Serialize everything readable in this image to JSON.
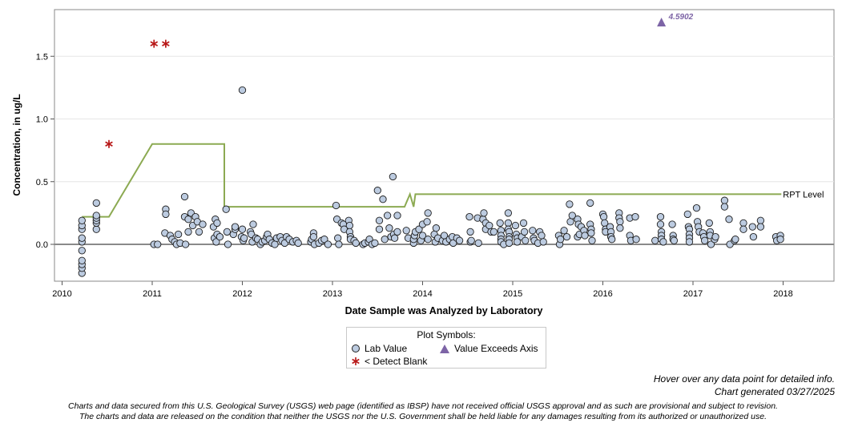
{
  "chart_data": {
    "type": "scatter",
    "title": "",
    "xlabel": "Date Sample was Analyzed by Laboratory",
    "ylabel": "Concentration, in ug/L",
    "xlim": [
      2010.0,
      2018.4
    ],
    "ylim": [
      -0.28,
      1.85
    ],
    "x_ticks": [
      "2010",
      "2011",
      "2012",
      "2013",
      "2014",
      "2015",
      "2016",
      "2017",
      "2018"
    ],
    "y_ticks": [
      "0.0",
      "0.5",
      "1.0",
      "1.5"
    ],
    "zero_line": 0,
    "legend_title": "Plot Symbols:",
    "legend": [
      {
        "key": "lab",
        "label": "Lab Value"
      },
      {
        "key": "exceed",
        "label": "Value Exceeds Axis"
      },
      {
        "key": "blank",
        "label": "< Detect Blank"
      }
    ],
    "series": [
      {
        "key": "lab",
        "name": "Lab Value",
        "color": "#bccbe0",
        "points": [
          [
            2010.22,
            -0.23
          ],
          [
            2010.22,
            -0.19
          ],
          [
            2010.22,
            -0.16
          ],
          [
            2010.22,
            -0.13
          ],
          [
            2010.22,
            -0.05
          ],
          [
            2010.22,
            0.02
          ],
          [
            2010.22,
            0.05
          ],
          [
            2010.22,
            0.12
          ],
          [
            2010.22,
            0.15
          ],
          [
            2010.22,
            0.19
          ],
          [
            2010.38,
            0.12
          ],
          [
            2010.38,
            0.17
          ],
          [
            2010.38,
            0.19
          ],
          [
            2010.38,
            0.21
          ],
          [
            2010.38,
            0.23
          ],
          [
            2010.38,
            0.33
          ],
          [
            2011.02,
            0.0
          ],
          [
            2011.06,
            0.0
          ],
          [
            2011.14,
            0.09
          ],
          [
            2011.15,
            0.28
          ],
          [
            2011.15,
            0.24
          ],
          [
            2011.2,
            0.07
          ],
          [
            2011.22,
            0.04
          ],
          [
            2011.25,
            0.02
          ],
          [
            2011.27,
            0.0
          ],
          [
            2011.29,
            0.08
          ],
          [
            2011.31,
            0.01
          ],
          [
            2011.36,
            0.22
          ],
          [
            2011.36,
            0.38
          ],
          [
            2011.37,
            0.0
          ],
          [
            2011.4,
            0.2
          ],
          [
            2011.4,
            0.1
          ],
          [
            2011.43,
            0.25
          ],
          [
            2011.45,
            0.15
          ],
          [
            2011.48,
            0.22
          ],
          [
            2011.5,
            0.18
          ],
          [
            2011.52,
            0.1
          ],
          [
            2011.56,
            0.16
          ],
          [
            2011.68,
            0.14
          ],
          [
            2011.69,
            0.05
          ],
          [
            2011.7,
            0.2
          ],
          [
            2011.71,
            0.02
          ],
          [
            2011.72,
            0.17
          ],
          [
            2011.72,
            0.08
          ],
          [
            2011.75,
            0.06
          ],
          [
            2011.82,
            0.28
          ],
          [
            2011.83,
            0.1
          ],
          [
            2011.84,
            0.0
          ],
          [
            2011.9,
            0.08
          ],
          [
            2011.92,
            0.12
          ],
          [
            2011.92,
            0.14
          ],
          [
            2011.99,
            0.06
          ],
          [
            2012.0,
            1.23
          ],
          [
            2012.0,
            0.12
          ],
          [
            2012.01,
            0.03
          ],
          [
            2012.02,
            0.05
          ],
          [
            2012.09,
            0.1
          ],
          [
            2012.1,
            0.08
          ],
          [
            2012.11,
            0.02
          ],
          [
            2012.12,
            0.16
          ],
          [
            2012.15,
            0.05
          ],
          [
            2012.17,
            0.04
          ],
          [
            2012.2,
            0.0
          ],
          [
            2012.22,
            0.02
          ],
          [
            2012.25,
            0.03
          ],
          [
            2012.27,
            0.06
          ],
          [
            2012.28,
            0.08
          ],
          [
            2012.3,
            0.04
          ],
          [
            2012.33,
            0.01
          ],
          [
            2012.36,
            0.0
          ],
          [
            2012.38,
            0.05
          ],
          [
            2012.42,
            0.06
          ],
          [
            2012.44,
            0.03
          ],
          [
            2012.47,
            0.01
          ],
          [
            2012.49,
            0.06
          ],
          [
            2012.52,
            0.04
          ],
          [
            2012.56,
            0.02
          ],
          [
            2012.6,
            0.03
          ],
          [
            2012.62,
            0.01
          ],
          [
            2012.76,
            0.02
          ],
          [
            2012.77,
            0.04
          ],
          [
            2012.79,
            0.09
          ],
          [
            2012.79,
            0.06
          ],
          [
            2012.8,
            0.0
          ],
          [
            2012.85,
            0.01
          ],
          [
            2012.88,
            0.03
          ],
          [
            2012.91,
            0.04
          ],
          [
            2012.95,
            0.0
          ],
          [
            2013.04,
            0.31
          ],
          [
            2013.05,
            0.2
          ],
          [
            2013.06,
            0.05
          ],
          [
            2013.07,
            0.0
          ],
          [
            2013.1,
            0.17
          ],
          [
            2013.12,
            0.16
          ],
          [
            2013.13,
            0.12
          ],
          [
            2013.18,
            0.19
          ],
          [
            2013.19,
            0.15
          ],
          [
            2013.19,
            0.1
          ],
          [
            2013.2,
            0.06
          ],
          [
            2013.2,
            0.04
          ],
          [
            2013.24,
            0.03
          ],
          [
            2013.26,
            0.01
          ],
          [
            2013.34,
            0.0
          ],
          [
            2013.36,
            0.01
          ],
          [
            2013.4,
            0.02
          ],
          [
            2013.41,
            0.04
          ],
          [
            2013.44,
            0.0
          ],
          [
            2013.47,
            0.01
          ],
          [
            2013.5,
            0.43
          ],
          [
            2013.52,
            0.19
          ],
          [
            2013.52,
            0.12
          ],
          [
            2013.56,
            0.36
          ],
          [
            2013.58,
            0.04
          ],
          [
            2013.61,
            0.23
          ],
          [
            2013.63,
            0.13
          ],
          [
            2013.65,
            0.06
          ],
          [
            2013.67,
            0.54
          ],
          [
            2013.68,
            0.08
          ],
          [
            2013.69,
            0.05
          ],
          [
            2013.72,
            0.23
          ],
          [
            2013.72,
            0.1
          ],
          [
            2013.82,
            0.11
          ],
          [
            2013.84,
            0.05
          ],
          [
            2013.9,
            0.01
          ],
          [
            2013.9,
            0.04
          ],
          [
            2013.91,
            0.07
          ],
          [
            2013.92,
            0.1
          ],
          [
            2013.96,
            0.12
          ],
          [
            2013.98,
            0.03
          ],
          [
            2014.0,
            0.07
          ],
          [
            2014.0,
            0.16
          ],
          [
            2014.05,
            0.18
          ],
          [
            2014.06,
            0.25
          ],
          [
            2014.06,
            0.04
          ],
          [
            2014.13,
            0.08
          ],
          [
            2014.14,
            0.02
          ],
          [
            2014.15,
            0.13
          ],
          [
            2014.17,
            0.05
          ],
          [
            2014.22,
            0.03
          ],
          [
            2014.24,
            0.07
          ],
          [
            2014.26,
            0.02
          ],
          [
            2014.3,
            0.04
          ],
          [
            2014.33,
            0.06
          ],
          [
            2014.34,
            0.01
          ],
          [
            2014.38,
            0.05
          ],
          [
            2014.41,
            0.03
          ],
          [
            2014.52,
            0.22
          ],
          [
            2014.53,
            0.1
          ],
          [
            2014.53,
            0.02
          ],
          [
            2014.54,
            0.03
          ],
          [
            2014.61,
            0.21
          ],
          [
            2014.62,
            0.01
          ],
          [
            2014.67,
            0.2
          ],
          [
            2014.68,
            0.25
          ],
          [
            2014.7,
            0.17
          ],
          [
            2014.7,
            0.12
          ],
          [
            2014.74,
            0.15
          ],
          [
            2014.76,
            0.1
          ],
          [
            2014.79,
            0.1
          ],
          [
            2014.86,
            0.17
          ],
          [
            2014.87,
            0.11
          ],
          [
            2014.87,
            0.07
          ],
          [
            2014.87,
            0.04
          ],
          [
            2014.87,
            0.02
          ],
          [
            2014.9,
            0.0
          ],
          [
            2014.95,
            0.25
          ],
          [
            2014.95,
            0.17
          ],
          [
            2014.95,
            0.12
          ],
          [
            2014.96,
            0.1
          ],
          [
            2014.96,
            0.06
          ],
          [
            2014.96,
            0.04
          ],
          [
            2014.96,
            0.01
          ],
          [
            2015.03,
            0.15
          ],
          [
            2015.04,
            0.08
          ],
          [
            2015.05,
            0.05
          ],
          [
            2015.05,
            0.02
          ],
          [
            2015.1,
            0.06
          ],
          [
            2015.12,
            0.17
          ],
          [
            2015.13,
            0.1
          ],
          [
            2015.14,
            0.03
          ],
          [
            2015.22,
            0.11
          ],
          [
            2015.23,
            0.05
          ],
          [
            2015.24,
            0.03
          ],
          [
            2015.28,
            0.01
          ],
          [
            2015.3,
            0.1
          ],
          [
            2015.32,
            0.07
          ],
          [
            2015.34,
            0.02
          ],
          [
            2015.51,
            0.07
          ],
          [
            2015.52,
            0.0
          ],
          [
            2015.53,
            0.04
          ],
          [
            2015.57,
            0.11
          ],
          [
            2015.6,
            0.06
          ],
          [
            2015.63,
            0.32
          ],
          [
            2015.64,
            0.18
          ],
          [
            2015.66,
            0.23
          ],
          [
            2015.72,
            0.06
          ],
          [
            2015.72,
            0.2
          ],
          [
            2015.73,
            0.16
          ],
          [
            2015.74,
            0.08
          ],
          [
            2015.76,
            0.14
          ],
          [
            2015.79,
            0.11
          ],
          [
            2015.8,
            0.07
          ],
          [
            2015.86,
            0.16
          ],
          [
            2015.86,
            0.33
          ],
          [
            2015.87,
            0.12
          ],
          [
            2015.87,
            0.09
          ],
          [
            2015.88,
            0.03
          ],
          [
            2016.0,
            0.24
          ],
          [
            2016.01,
            0.22
          ],
          [
            2016.02,
            0.17
          ],
          [
            2016.03,
            0.12
          ],
          [
            2016.03,
            0.1
          ],
          [
            2016.08,
            0.14
          ],
          [
            2016.09,
            0.1
          ],
          [
            2016.09,
            0.06
          ],
          [
            2016.1,
            0.04
          ],
          [
            2016.18,
            0.25
          ],
          [
            2016.18,
            0.21
          ],
          [
            2016.19,
            0.18
          ],
          [
            2016.19,
            0.13
          ],
          [
            2016.3,
            0.21
          ],
          [
            2016.3,
            0.07
          ],
          [
            2016.31,
            0.03
          ],
          [
            2016.36,
            0.22
          ],
          [
            2016.37,
            0.04
          ],
          [
            2016.58,
            0.03
          ],
          [
            2016.64,
            0.22
          ],
          [
            2016.64,
            0.16
          ],
          [
            2016.65,
            0.1
          ],
          [
            2016.65,
            0.07
          ],
          [
            2016.65,
            0.04
          ],
          [
            2016.67,
            0.02
          ],
          [
            2016.77,
            0.16
          ],
          [
            2016.78,
            0.07
          ],
          [
            2016.78,
            0.04
          ],
          [
            2016.79,
            0.03
          ],
          [
            2016.94,
            0.24
          ],
          [
            2016.95,
            0.14
          ],
          [
            2016.96,
            0.12
          ],
          [
            2016.96,
            0.08
          ],
          [
            2016.96,
            0.05
          ],
          [
            2016.96,
            0.02
          ],
          [
            2017.04,
            0.29
          ],
          [
            2017.05,
            0.18
          ],
          [
            2017.06,
            0.14
          ],
          [
            2017.07,
            0.1
          ],
          [
            2017.11,
            0.09
          ],
          [
            2017.12,
            0.06
          ],
          [
            2017.13,
            0.03
          ],
          [
            2017.18,
            0.17
          ],
          [
            2017.19,
            0.1
          ],
          [
            2017.19,
            0.07
          ],
          [
            2017.2,
            0.0
          ],
          [
            2017.24,
            0.04
          ],
          [
            2017.25,
            0.06
          ],
          [
            2017.35,
            0.35
          ],
          [
            2017.35,
            0.3
          ],
          [
            2017.4,
            0.2
          ],
          [
            2017.41,
            0.0
          ],
          [
            2017.46,
            0.03
          ],
          [
            2017.47,
            0.04
          ],
          [
            2017.56,
            0.17
          ],
          [
            2017.56,
            0.12
          ],
          [
            2017.66,
            0.14
          ],
          [
            2017.67,
            0.06
          ],
          [
            2017.75,
            0.19
          ],
          [
            2017.75,
            0.14
          ],
          [
            2017.92,
            0.06
          ],
          [
            2017.93,
            0.03
          ],
          [
            2017.97,
            0.07
          ],
          [
            2017.97,
            0.04
          ]
        ]
      },
      {
        "key": "blank",
        "name": "< Detect Blank",
        "color": "#b81818",
        "points": [
          [
            2010.52,
            0.8
          ],
          [
            2011.02,
            1.6
          ],
          [
            2011.15,
            1.6
          ]
        ]
      },
      {
        "key": "exceed",
        "name": "Value Exceeds Axis",
        "color": "#7d64a6",
        "points": [
          [
            2016.65,
            1.77
          ]
        ],
        "label": "4.5902"
      },
      {
        "key": "rpt",
        "name": "RPT Level",
        "type": "step_line",
        "color": "#8caa52",
        "label": "RPT Level",
        "points": [
          [
            2010.22,
            0.22
          ],
          [
            2010.52,
            0.22
          ],
          [
            2011.0,
            0.8
          ],
          [
            2011.8,
            0.8
          ],
          [
            2011.8,
            0.3
          ],
          [
            2013.8,
            0.3
          ],
          [
            2013.86,
            0.4
          ],
          [
            2013.9,
            0.3
          ],
          [
            2013.92,
            0.4
          ],
          [
            2017.98,
            0.4
          ]
        ]
      }
    ]
  },
  "footer": {
    "hover_note": "Hover over any data point for detailed info.",
    "generated": "Chart generated 03/27/2025",
    "disclaimer_1": "Charts and data secured from this U.S. Geological Survey (USGS) web page (identified as IBSP) have not received official USGS approval and as such are provisional and subject to revision.",
    "disclaimer_2": "The charts and data are released on the condition that neither the USGS nor the U.S. Government shall be held liable for any damages resulting from its authorized or unauthorized use."
  }
}
